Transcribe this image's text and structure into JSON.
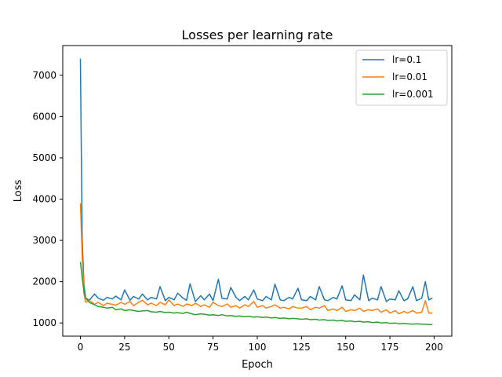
{
  "chart_data": {
    "type": "line",
    "title": "Losses per learning rate",
    "xlabel": "Epoch",
    "ylabel": "Loss",
    "xlim": [
      -10,
      210
    ],
    "ylim": [
      680,
      7720
    ],
    "xticks": [
      0,
      25,
      50,
      75,
      100,
      125,
      150,
      175,
      200
    ],
    "yticks": [
      1000,
      2000,
      3000,
      4000,
      5000,
      6000,
      7000
    ],
    "grid": false,
    "legend_position": "top-right",
    "series": [
      {
        "name": "lr=0.1",
        "color": "#1f77b4",
        "x": [
          0,
          1,
          2,
          3,
          5,
          8,
          10,
          13,
          15,
          18,
          20,
          23,
          25,
          28,
          30,
          33,
          35,
          38,
          40,
          43,
          45,
          48,
          50,
          53,
          55,
          58,
          60,
          62,
          65,
          68,
          70,
          73,
          75,
          78,
          80,
          83,
          85,
          88,
          90,
          93,
          95,
          98,
          100,
          103,
          105,
          108,
          110,
          113,
          115,
          118,
          120,
          123,
          125,
          128,
          130,
          133,
          135,
          138,
          140,
          143,
          145,
          148,
          150,
          153,
          155,
          158,
          160,
          163,
          165,
          168,
          170,
          173,
          175,
          178,
          180,
          183,
          185,
          188,
          190,
          193,
          195,
          197,
          199
        ],
        "y": [
          7400,
          3000,
          1900,
          1600,
          1550,
          1700,
          1600,
          1550,
          1620,
          1580,
          1650,
          1560,
          1800,
          1550,
          1640,
          1580,
          1700,
          1560,
          1620,
          1580,
          1880,
          1540,
          1620,
          1560,
          1720,
          1600,
          1550,
          1950,
          1520,
          1660,
          1560,
          1700,
          1540,
          2060,
          1600,
          1580,
          1860,
          1620,
          1540,
          1640,
          1560,
          1800,
          1580,
          1540,
          1640,
          1560,
          1940,
          1560,
          1540,
          1620,
          1580,
          1840,
          1560,
          1540,
          1640,
          1560,
          1880,
          1560,
          1540,
          1620,
          1580,
          1900,
          1560,
          1540,
          1680,
          1560,
          2160,
          1540,
          1600,
          1560,
          1880,
          1520,
          1580,
          1560,
          1780,
          1540,
          1580,
          1880,
          1540,
          1600,
          2000,
          1560,
          1600
        ]
      },
      {
        "name": "lr=0.01",
        "color": "#ff7f0e",
        "x": [
          0,
          1,
          2,
          3,
          5,
          8,
          10,
          13,
          15,
          18,
          20,
          23,
          25,
          28,
          30,
          33,
          35,
          38,
          40,
          43,
          45,
          48,
          50,
          53,
          55,
          58,
          60,
          63,
          65,
          68,
          70,
          73,
          75,
          78,
          80,
          83,
          85,
          88,
          90,
          93,
          95,
          98,
          100,
          103,
          105,
          108,
          110,
          113,
          115,
          118,
          120,
          123,
          125,
          128,
          130,
          133,
          135,
          138,
          140,
          143,
          145,
          148,
          150,
          153,
          155,
          158,
          160,
          163,
          165,
          168,
          170,
          173,
          175,
          178,
          180,
          183,
          185,
          188,
          190,
          193,
          195,
          197,
          199
        ],
        "y": [
          3900,
          2600,
          1700,
          1500,
          1550,
          1450,
          1500,
          1420,
          1480,
          1450,
          1430,
          1500,
          1450,
          1520,
          1420,
          1500,
          1550,
          1440,
          1480,
          1420,
          1500,
          1440,
          1560,
          1420,
          1460,
          1400,
          1460,
          1420,
          1480,
          1400,
          1440,
          1380,
          1500,
          1420,
          1400,
          1460,
          1380,
          1420,
          1360,
          1440,
          1400,
          1520,
          1380,
          1420,
          1360,
          1400,
          1440,
          1360,
          1380,
          1340,
          1400,
          1360,
          1360,
          1400,
          1320,
          1380,
          1360,
          1420,
          1300,
          1340,
          1300,
          1380,
          1280,
          1320,
          1300,
          1360,
          1280,
          1320,
          1300,
          1340,
          1260,
          1320,
          1240,
          1300,
          1220,
          1280,
          1240,
          1300,
          1240,
          1260,
          1540,
          1240,
          1240
        ]
      },
      {
        "name": "lr=0.001",
        "color": "#2ca02c",
        "x": [
          0,
          1,
          2,
          3,
          5,
          8,
          10,
          13,
          15,
          18,
          20,
          23,
          25,
          28,
          30,
          33,
          35,
          38,
          40,
          43,
          45,
          48,
          50,
          53,
          55,
          58,
          60,
          63,
          65,
          68,
          70,
          73,
          75,
          78,
          80,
          83,
          85,
          88,
          90,
          93,
          95,
          98,
          100,
          103,
          105,
          108,
          110,
          113,
          115,
          118,
          120,
          123,
          125,
          128,
          130,
          133,
          135,
          138,
          140,
          143,
          145,
          148,
          150,
          153,
          155,
          158,
          160,
          163,
          165,
          168,
          170,
          173,
          175,
          178,
          180,
          183,
          185,
          188,
          190,
          193,
          195,
          197,
          199
        ],
        "y": [
          2480,
          2100,
          1750,
          1600,
          1500,
          1440,
          1400,
          1380,
          1360,
          1380,
          1320,
          1340,
          1300,
          1320,
          1300,
          1280,
          1290,
          1300,
          1270,
          1260,
          1280,
          1250,
          1260,
          1240,
          1250,
          1230,
          1260,
          1220,
          1200,
          1220,
          1210,
          1190,
          1200,
          1180,
          1200,
          1170,
          1180,
          1160,
          1170,
          1150,
          1160,
          1140,
          1150,
          1130,
          1140,
          1120,
          1130,
          1110,
          1120,
          1100,
          1110,
          1100,
          1090,
          1100,
          1080,
          1090,
          1070,
          1080,
          1060,
          1070,
          1050,
          1060,
          1040,
          1050,
          1030,
          1040,
          1020,
          1030,
          1010,
          1020,
          1000,
          1010,
          990,
          1000,
          980,
          990,
          980,
          970,
          980,
          970,
          970,
          960,
          960
        ]
      }
    ]
  }
}
